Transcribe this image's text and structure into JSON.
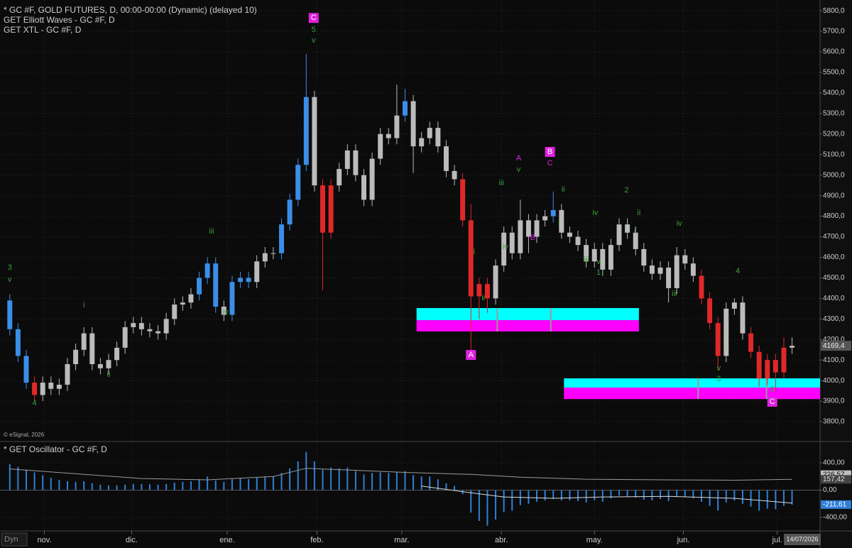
{
  "header": {
    "lines": [
      "* GC #F, GOLD FUTURES, D, 00:00-00:00 (Dynamic) (delayed 10)",
      "GET Elliott Waves - GC #F, D",
      "GET XTL - GC #F, D"
    ],
    "copyright": "© eSignal, 2026"
  },
  "chart_data": [
    {
      "type": "candlestick",
      "grid": true,
      "open": [
        4390,
        4250,
        4120,
        3990,
        3930,
        3990,
        3960,
        3980,
        4080,
        4150,
        4230,
        4080,
        4060,
        4100,
        4160,
        4260,
        4280,
        4250,
        4240,
        4230,
        4300,
        4370,
        4380,
        4420,
        4500,
        4570,
        4360,
        4320,
        4480,
        4500,
        4480,
        4580,
        4620,
        4620,
        4760,
        4880,
        5050,
        5380,
        4950,
        4720,
        4950,
        5030,
        5120,
        5000,
        4880,
        5080,
        5200,
        5180,
        5290,
        5360,
        5140,
        5180,
        5230,
        5140,
        5020,
        4980,
        4780,
        4410,
        4470,
        4400,
        4560,
        4720,
        4620,
        4780,
        4700,
        4780,
        4800,
        4830,
        4720,
        4700,
        4660,
        4580,
        4640,
        4540,
        4660,
        4760,
        4720,
        4640,
        4560,
        4520,
        4550,
        4450,
        4610,
        4570,
        4510,
        4400,
        4280,
        4120,
        4350,
        4380,
        4230,
        4140,
        4010,
        4100,
        4040,
        4160
      ],
      "high": [
        4420,
        4280,
        4150,
        4020,
        4020,
        4020,
        4010,
        4110,
        4180,
        4260,
        4260,
        4110,
        4130,
        4190,
        4290,
        4310,
        4310,
        4280,
        4270,
        4330,
        4400,
        4410,
        4450,
        4530,
        4600,
        4600,
        4390,
        4510,
        4530,
        4530,
        4610,
        4650,
        4650,
        4790,
        4910,
        5080,
        5590,
        5410,
        4980,
        4980,
        5060,
        5150,
        5150,
        5030,
        5110,
        5230,
        5230,
        5440,
        5420,
        5390,
        5210,
        5260,
        5260,
        5170,
        5050,
        5010,
        4860,
        4500,
        4500,
        4590,
        4750,
        4750,
        4880,
        4810,
        4810,
        4830,
        4920,
        4860,
        4750,
        4730,
        4690,
        4670,
        4670,
        4690,
        4790,
        4790,
        4750,
        4670,
        4590,
        4580,
        4580,
        4650,
        4640,
        4600,
        4540,
        4430,
        4310,
        4380,
        4400,
        4410,
        4260,
        4170,
        4130,
        4130,
        4210,
        4210
      ],
      "low": [
        4220,
        4090,
        3960,
        3900,
        3900,
        3930,
        3930,
        3950,
        4050,
        4120,
        4050,
        4030,
        4030,
        4070,
        4130,
        4230,
        4220,
        4210,
        4200,
        4200,
        4270,
        4340,
        4350,
        4390,
        4470,
        4330,
        4290,
        4290,
        4450,
        4450,
        4450,
        4550,
        4590,
        4590,
        4730,
        4850,
        5020,
        4920,
        4440,
        4690,
        4920,
        5000,
        4970,
        4850,
        4850,
        5050,
        5150,
        5150,
        5260,
        5010,
        5110,
        5150,
        5110,
        4990,
        4950,
        4750,
        4100,
        4300,
        4330,
        4370,
        4530,
        4590,
        4590,
        4620,
        4670,
        4750,
        4770,
        4690,
        4670,
        4630,
        4550,
        4550,
        4510,
        4510,
        4630,
        4690,
        4610,
        4530,
        4490,
        4490,
        4380,
        4420,
        4540,
        4480,
        4370,
        4250,
        4050,
        4090,
        4320,
        4200,
        4110,
        3970,
        3980,
        3950,
        4010,
        4130
      ],
      "close": [
        4250,
        4120,
        3990,
        3930,
        3990,
        3960,
        3980,
        4080,
        4150,
        4230,
        4080,
        4060,
        4100,
        4160,
        4260,
        4280,
        4250,
        4240,
        4230,
        4300,
        4370,
        4380,
        4420,
        4500,
        4570,
        4360,
        4320,
        4480,
        4500,
        4480,
        4580,
        4620,
        4620,
        4760,
        4880,
        5050,
        5380,
        4950,
        4720,
        4950,
        5030,
        5120,
        5000,
        4880,
        5080,
        5200,
        5180,
        5290,
        5360,
        5140,
        5180,
        5230,
        5140,
        5020,
        4980,
        4780,
        4410,
        4470,
        4400,
        4560,
        4720,
        4620,
        4780,
        4700,
        4780,
        4800,
        4830,
        4720,
        4700,
        4660,
        4580,
        4640,
        4540,
        4660,
        4760,
        4720,
        4640,
        4560,
        4520,
        4550,
        4450,
        4610,
        4570,
        4510,
        4400,
        4280,
        4120,
        4350,
        4380,
        4230,
        4140,
        4010,
        4100,
        4040,
        4160,
        4169.4
      ],
      "colors": [
        "#3a8ee8",
        "#3a8ee8",
        "#3a8ee8",
        "#e02828",
        "#bbb",
        "#bbb",
        "#bbb",
        "#bbb",
        "#bbb",
        "#bbb",
        "#bbb",
        "#bbb",
        "#bbb",
        "#bbb",
        "#bbb",
        "#bbb",
        "#bbb",
        "#bbb",
        "#bbb",
        "#bbb",
        "#bbb",
        "#bbb",
        "#bbb",
        "#3a8ee8",
        "#3a8ee8",
        "#3a8ee8",
        "#bbb",
        "#3a8ee8",
        "#3a8ee8",
        "#3a8ee8",
        "#bbb",
        "#bbb",
        "#bbb",
        "#3a8ee8",
        "#3a8ee8",
        "#3a8ee8",
        "#3a8ee8",
        "#bbb",
        "#e02828",
        "#e02828",
        "#bbb",
        "#bbb",
        "#bbb",
        "#bbb",
        "#bbb",
        "#bbb",
        "#bbb",
        "#bbb",
        "#3a8ee8",
        "#bbb",
        "#bbb",
        "#bbb",
        "#bbb",
        "#bbb",
        "#bbb",
        "#e02828",
        "#e02828",
        "#e02828",
        "#e02828",
        "#bbb",
        "#bbb",
        "#bbb",
        "#bbb",
        "#bbb",
        "#bbb",
        "#bbb",
        "#3a8ee8",
        "#bbb",
        "#bbb",
        "#bbb",
        "#bbb",
        "#bbb",
        "#bbb",
        "#bbb",
        "#bbb",
        "#bbb",
        "#bbb",
        "#bbb",
        "#bbb",
        "#bbb",
        "#bbb",
        "#bbb",
        "#bbb",
        "#bbb",
        "#e02828",
        "#e02828",
        "#e02828",
        "#bbb",
        "#bbb",
        "#bbb",
        "#e02828",
        "#e02828",
        "#e02828",
        "#e02828",
        "#e02828",
        "#bbb"
      ],
      "xlim": [
        -0.5,
        98.4
      ],
      "xticks": [
        {
          "value": 4.2,
          "label": "nov."
        },
        {
          "value": 14.8,
          "label": "dic."
        },
        {
          "value": 26.4,
          "label": "ene."
        },
        {
          "value": 37.3,
          "label": "feb."
        },
        {
          "value": 47.6,
          "label": "mar."
        },
        {
          "value": 59.7,
          "label": "abr."
        },
        {
          "value": 71.0,
          "label": "may."
        },
        {
          "value": 81.8,
          "label": "jun."
        },
        {
          "value": 93.2,
          "label": "jul."
        }
      ],
      "ylim": [
        3738,
        5835
      ],
      "yticks": [
        {
          "value": 3800,
          "label": "3800,0"
        },
        {
          "value": 3900,
          "label": "3900,0"
        },
        {
          "value": 4000,
          "label": "4000,0"
        },
        {
          "value": 4100,
          "label": "4100,0"
        },
        {
          "value": 4200,
          "label": "4200,0"
        },
        {
          "value": 4300,
          "label": "4300,0"
        },
        {
          "value": 4400,
          "label": "4400,0"
        },
        {
          "value": 4500,
          "label": "4500,0"
        },
        {
          "value": 4600,
          "label": "4600,0"
        },
        {
          "value": 4700,
          "label": "4700,0"
        },
        {
          "value": 4800,
          "label": "4800,0"
        },
        {
          "value": 4900,
          "label": "4900,0"
        },
        {
          "value": 5000,
          "label": "5000,0"
        },
        {
          "value": 5100,
          "label": "5100,0"
        },
        {
          "value": 5200,
          "label": "5200,0"
        },
        {
          "value": 5300,
          "label": "5300,0"
        },
        {
          "value": 5400,
          "label": "5400,0"
        },
        {
          "value": 5500,
          "label": "5500,0"
        },
        {
          "value": 5600,
          "label": "5600,0"
        },
        {
          "value": 5700,
          "label": "5700,0"
        },
        {
          "value": 5800,
          "label": "5800,0"
        }
      ],
      "last_price": {
        "value": 4169.4,
        "label": "4169,4"
      },
      "zones": [
        {
          "x": [
            49.4,
            76.4
          ],
          "bands": [
            {
              "y": [
                4294,
                4353
              ],
              "color": "#00ffff"
            },
            {
              "y": [
                4239,
                4294
              ],
              "color": "#ff00ff"
            }
          ],
          "splits": [
            59.2,
            65.7
          ]
        },
        {
          "x": [
            67.3,
            98.4
          ],
          "bands": [
            {
              "y": [
                3966,
                4011
              ],
              "color": "#00ffff"
            },
            {
              "y": [
                3910,
                3966
              ],
              "color": "#ff00ff"
            }
          ],
          "splits": [
            83.6,
            91.9
          ]
        }
      ],
      "annotations": [
        {
          "text": "3",
          "x": 0,
          "y": 4550,
          "color": "#3aa03a"
        },
        {
          "text": "v",
          "x": 0,
          "y": 4490,
          "color": "#3aa03a"
        },
        {
          "text": "4",
          "x": 3,
          "y": 3890,
          "color": "#3aa03a"
        },
        {
          "text": "i",
          "x": 9,
          "y": 4366,
          "color": "#3aa03a"
        },
        {
          "text": "ii",
          "x": 12,
          "y": 4028,
          "color": "#3aa03a"
        },
        {
          "text": "iii",
          "x": 24.5,
          "y": 4726,
          "color": "#3aa03a"
        },
        {
          "text": "iv",
          "x": 26.2,
          "y": 4332,
          "color": "#3aa03a"
        },
        {
          "text": "C",
          "x": 36.9,
          "y": 5765,
          "color": "#e020e0",
          "boxed": true
        },
        {
          "text": "5",
          "x": 36.9,
          "y": 5707,
          "color": "#3aa03a"
        },
        {
          "text": "v",
          "x": 36.9,
          "y": 5655,
          "color": "#3aa03a"
        },
        {
          "text": "A",
          "x": 56,
          "y": 4125,
          "color": "#e020e0",
          "boxed": true
        },
        {
          "text": "i",
          "x": 56.4,
          "y": 4625,
          "color": "#3aa03a"
        },
        {
          "text": "ii",
          "x": 57.5,
          "y": 4401,
          "color": "#3aa03a"
        },
        {
          "text": "iii",
          "x": 59.7,
          "y": 4961,
          "color": "#3aa03a"
        },
        {
          "text": "iv",
          "x": 60.2,
          "y": 4650,
          "color": "#3aa03a"
        },
        {
          "text": "A",
          "x": 61.8,
          "y": 5081,
          "color": "#e020e0"
        },
        {
          "text": "v",
          "x": 61.8,
          "y": 5026,
          "color": "#3aa03a"
        },
        {
          "text": "B",
          "x": 63.5,
          "y": 4695,
          "color": "#e020e0"
        },
        {
          "text": "B",
          "x": 65.6,
          "y": 5113,
          "color": "#e020e0",
          "boxed": true
        },
        {
          "text": "C",
          "x": 65.6,
          "y": 5057,
          "color": "#e020e0"
        },
        {
          "text": "ii",
          "x": 67.2,
          "y": 4930,
          "color": "#3aa03a"
        },
        {
          "text": "i",
          "x": 66.7,
          "y": 4760,
          "color": "#3aa03a"
        },
        {
          "text": "iv",
          "x": 71.1,
          "y": 4816,
          "color": "#3aa03a"
        },
        {
          "text": "iii",
          "x": 70,
          "y": 4588,
          "color": "#3aa03a"
        },
        {
          "text": "v",
          "x": 71.5,
          "y": 4577,
          "color": "#3aa03a"
        },
        {
          "text": "1",
          "x": 71.5,
          "y": 4525,
          "color": "#3aa03a"
        },
        {
          "text": "2",
          "x": 74.9,
          "y": 4926,
          "color": "#3aa03a"
        },
        {
          "text": "ii",
          "x": 76.4,
          "y": 4816,
          "color": "#3aa03a"
        },
        {
          "text": "i",
          "x": 75.9,
          "y": 4726,
          "color": "#3aa03a"
        },
        {
          "text": "iv",
          "x": 81.3,
          "y": 4764,
          "color": "#3aa03a"
        },
        {
          "text": "iii",
          "x": 80.7,
          "y": 4422,
          "color": "#3aa03a"
        },
        {
          "text": "4",
          "x": 88.4,
          "y": 4532,
          "color": "#3aa03a"
        },
        {
          "text": "v",
          "x": 86.1,
          "y": 4059,
          "color": "#3aa03a"
        },
        {
          "text": "3",
          "x": 86.1,
          "y": 4007,
          "color": "#3aa03a"
        },
        {
          "text": "5",
          "x": 92.6,
          "y": 3955,
          "color": "#3aa03a"
        },
        {
          "text": "C",
          "x": 92.6,
          "y": 3897,
          "color": "#e020e0",
          "boxed": true
        }
      ]
    },
    {
      "type": "bar",
      "title": "* GET Oscillator - GC #F, D",
      "grid": true,
      "color": "#2f7fd8",
      "values": [
        380,
        340,
        300,
        260,
        220,
        180,
        150,
        130,
        120,
        130,
        100,
        80,
        70,
        70,
        80,
        90,
        90,
        85,
        80,
        90,
        110,
        120,
        130,
        160,
        200,
        140,
        120,
        160,
        170,
        160,
        180,
        200,
        200,
        250,
        320,
        420,
        560,
        420,
        300,
        330,
        320,
        330,
        280,
        230,
        250,
        260,
        250,
        270,
        280,
        220,
        200,
        200,
        160,
        100,
        60,
        -60,
        -330,
        -450,
        -520,
        -430,
        -320,
        -300,
        -220,
        -200,
        -170,
        -150,
        -130,
        -150,
        -150,
        -160,
        -180,
        -150,
        -170,
        -120,
        -80,
        -90,
        -110,
        -140,
        -150,
        -130,
        -160,
        -100,
        -100,
        -120,
        -170,
        -230,
        -300,
        -180,
        -150,
        -200,
        -240,
        -300,
        -270,
        -280,
        -230,
        -211.61
      ],
      "lines": [
        {
          "color": "#9a9a9a",
          "x": [
            0,
            8,
            16,
            24,
            32,
            36,
            40,
            48,
            56,
            62,
            70,
            80,
            88,
            95
          ],
          "values": [
            310,
            240,
            170,
            150,
            200,
            320,
            300,
            260,
            230,
            190,
            160,
            150,
            145,
            157.42
          ]
        },
        {
          "color": "#d8d8d8",
          "x": [
            50,
            56,
            60,
            66,
            72,
            80,
            88,
            95
          ],
          "values": [
            60,
            -40,
            -100,
            -120,
            -100,
            -90,
            -120,
            -190
          ]
        }
      ],
      "ylim": [
        -566,
        597
      ],
      "yticks": [
        {
          "value": 400,
          "label": "400,00"
        },
        {
          "value": 0,
          "label": "0,00"
        },
        {
          "value": -400,
          "label": "-400,00"
        }
      ],
      "markers": [
        {
          "value": 226.57,
          "label": "226,57",
          "color": "#bdbdbd",
          "text_color": "#111"
        },
        {
          "value": 157.42,
          "label": "157,42",
          "color": "#444",
          "text_color": "#ddd"
        },
        {
          "value": -211.61,
          "label": "-211,61",
          "color": "#2f7fd8",
          "text_color": "#fff"
        }
      ]
    }
  ],
  "footer": {
    "button": "Dyn",
    "date": "14/07/2026"
  }
}
